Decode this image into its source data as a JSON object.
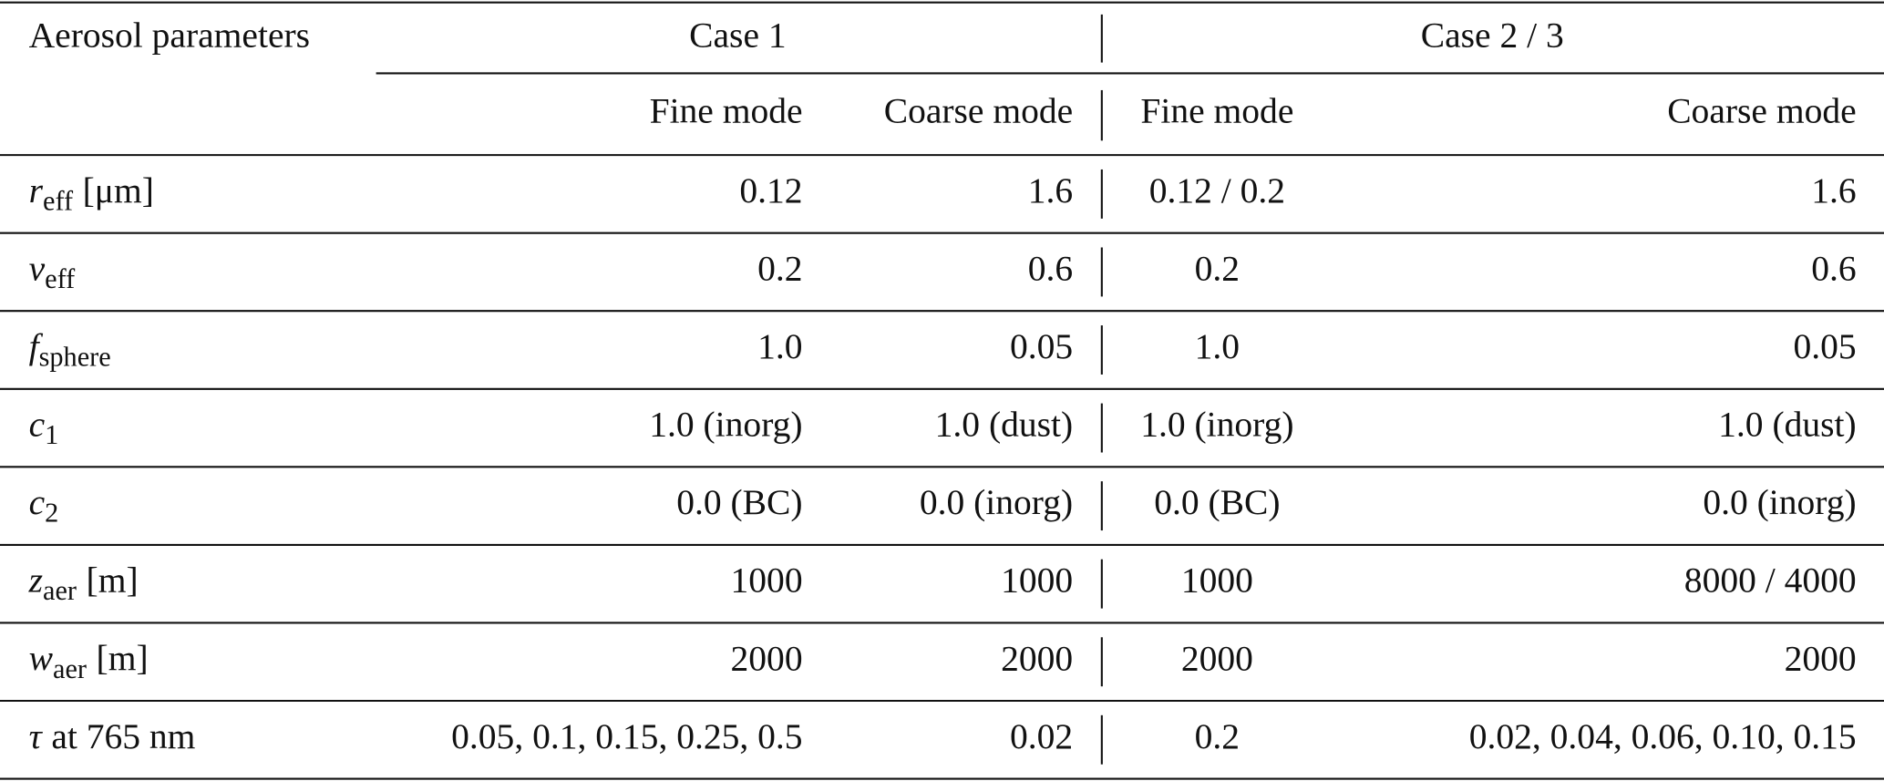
{
  "table": {
    "header": {
      "label": "Aerosol parameters",
      "groups": [
        "Case 1",
        "Case 2 / 3"
      ],
      "columns": [
        "Fine mode",
        "Coarse mode",
        "Fine mode",
        "Coarse mode"
      ]
    },
    "rows": [
      {
        "symbol": "r",
        "sub": "eff",
        "unit": "[μm]",
        "cells": [
          "0.12",
          "1.6",
          "0.12 / 0.2",
          "1.6"
        ]
      },
      {
        "symbol": "v",
        "sub": "eff",
        "cells": [
          "0.2",
          "0.6",
          "0.2",
          "0.6"
        ]
      },
      {
        "symbol": "f",
        "sub": "sphere",
        "cells": [
          "1.0",
          "0.05",
          "1.0",
          "0.05"
        ]
      },
      {
        "symbol": "c",
        "sub": "1",
        "cells": [
          "1.0 (inorg)",
          "1.0 (dust)",
          "1.0 (inorg)",
          "1.0 (dust)"
        ]
      },
      {
        "symbol": "c",
        "sub": "2",
        "cells": [
          "0.0 (BC)",
          "0.0 (inorg)",
          "0.0 (BC)",
          "0.0 (inorg)"
        ]
      },
      {
        "symbol": "z",
        "sub": "aer",
        "unit": "[m]",
        "cells": [
          "1000",
          "1000",
          "1000",
          "8000 / 4000"
        ]
      },
      {
        "symbol": "w",
        "sub": "aer",
        "unit": "[m]",
        "cells": [
          "2000",
          "2000",
          "2000",
          "2000"
        ]
      },
      {
        "symbol": "τ",
        "unit": "at 765 nm",
        "cells": [
          "0.05, 0.1, 0.15, 0.25, 0.5",
          "0.02",
          "0.2",
          "0.02, 0.04, 0.06, 0.10, 0.15"
        ]
      }
    ]
  }
}
